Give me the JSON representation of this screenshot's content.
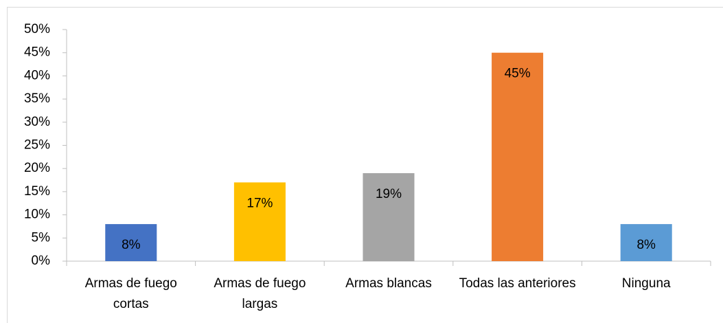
{
  "chart_data": {
    "type": "bar",
    "categories": [
      "Armas de fuego cortas",
      "Armas de fuego largas",
      "Armas blancas",
      "Todas las anteriores",
      "Ninguna"
    ],
    "values": [
      8,
      17,
      19,
      45,
      8
    ],
    "value_labels": [
      "8%",
      "17%",
      "19%",
      "45%",
      "8%"
    ],
    "colors": [
      "#4472c4",
      "#ffc000",
      "#a5a5a5",
      "#ed7d31",
      "#5b9bd5"
    ],
    "ylim": [
      0,
      50
    ],
    "yticks": [
      {
        "value": 0,
        "label": "0%"
      },
      {
        "value": 5,
        "label": "5%"
      },
      {
        "value": 10,
        "label": "10%"
      },
      {
        "value": 15,
        "label": "15%"
      },
      {
        "value": 20,
        "label": "20%"
      },
      {
        "value": 25,
        "label": "25%"
      },
      {
        "value": 30,
        "label": "30%"
      },
      {
        "value": 35,
        "label": "35%"
      },
      {
        "value": 40,
        "label": "40%"
      },
      {
        "value": 45,
        "label": "45%"
      },
      {
        "value": 50,
        "label": "50%"
      }
    ],
    "grid": false
  }
}
